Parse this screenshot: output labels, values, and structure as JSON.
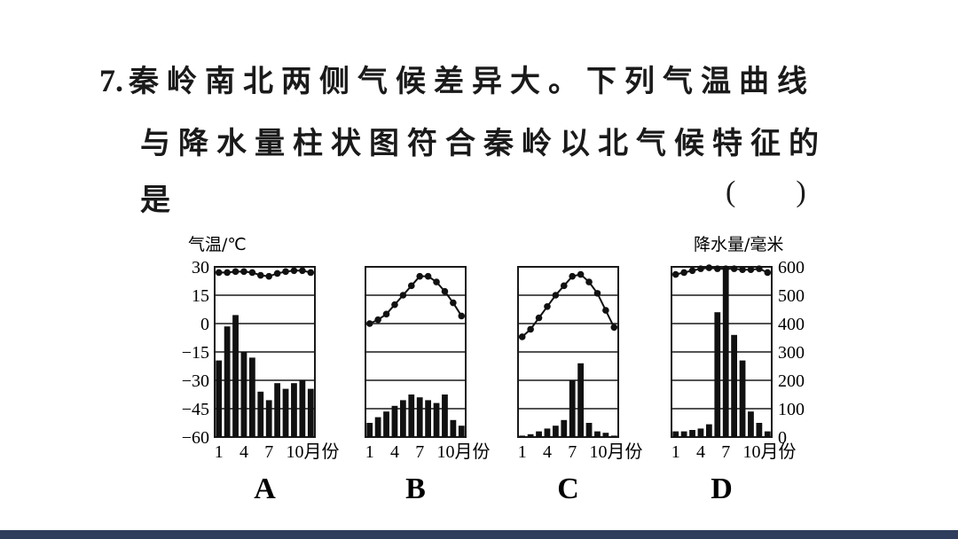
{
  "question": {
    "number": "7.",
    "line1": "秦岭南北两侧气候差异大。下列气温曲线",
    "line2": "与降水量柱状图符合秦岭以北气候特征的",
    "line3": "是",
    "answer_bracket": "(        )"
  },
  "figure": {
    "left_axis_title": "气温/℃",
    "right_axis_title": "降水量/毫米",
    "temp_ticks": [
      "30",
      "15",
      "0",
      "−15",
      "−30",
      "−45",
      "−60"
    ],
    "precip_ticks": [
      "600",
      "500",
      "400",
      "300",
      "200",
      "100",
      "0"
    ],
    "month_ticks": [
      "1",
      "4",
      "7",
      "10月份"
    ],
    "options": [
      "A",
      "B",
      "C",
      "D"
    ]
  },
  "chart_data": [
    {
      "type": "line+bar",
      "label": "A",
      "x": [
        1,
        2,
        3,
        4,
        5,
        6,
        7,
        8,
        9,
        10,
        11,
        12
      ],
      "temperature": [
        27,
        27,
        27.5,
        27.5,
        27,
        25.5,
        25,
        26.5,
        27.5,
        28,
        28,
        27
      ],
      "precipitation": [
        270,
        390,
        430,
        300,
        280,
        160,
        130,
        190,
        170,
        190,
        200,
        170
      ],
      "temp_range": [
        -60,
        30
      ],
      "precip_range": [
        0,
        600
      ]
    },
    {
      "type": "line+bar",
      "label": "B",
      "x": [
        1,
        2,
        3,
        4,
        5,
        6,
        7,
        8,
        9,
        10,
        11,
        12
      ],
      "temperature": [
        0,
        2,
        5,
        10,
        15,
        20,
        25,
        25,
        22,
        17,
        11,
        4
      ],
      "precipitation": [
        50,
        70,
        90,
        110,
        130,
        150,
        140,
        130,
        120,
        150,
        60,
        40
      ],
      "temp_range": [
        -60,
        30
      ],
      "precip_range": [
        0,
        600
      ]
    },
    {
      "type": "line+bar",
      "label": "C",
      "x": [
        1,
        2,
        3,
        4,
        5,
        6,
        7,
        8,
        9,
        10,
        11,
        12
      ],
      "temperature": [
        -7,
        -3,
        3,
        9,
        15,
        20,
        25,
        26,
        22,
        16,
        7,
        -2
      ],
      "precipitation": [
        5,
        10,
        20,
        30,
        40,
        60,
        200,
        260,
        50,
        20,
        15,
        5
      ],
      "temp_range": [
        -60,
        30
      ],
      "precip_range": [
        0,
        600
      ]
    },
    {
      "type": "line+bar",
      "label": "D",
      "x": [
        1,
        2,
        3,
        4,
        5,
        6,
        7,
        8,
        9,
        10,
        11,
        12
      ],
      "temperature": [
        26,
        27,
        28,
        29,
        29.5,
        29,
        29,
        29,
        28.5,
        28.5,
        29,
        27
      ],
      "precipitation": [
        20,
        20,
        25,
        30,
        45,
        440,
        600,
        360,
        270,
        90,
        50,
        20
      ],
      "temp_range": [
        -60,
        30
      ],
      "precip_range": [
        0,
        600
      ]
    }
  ]
}
